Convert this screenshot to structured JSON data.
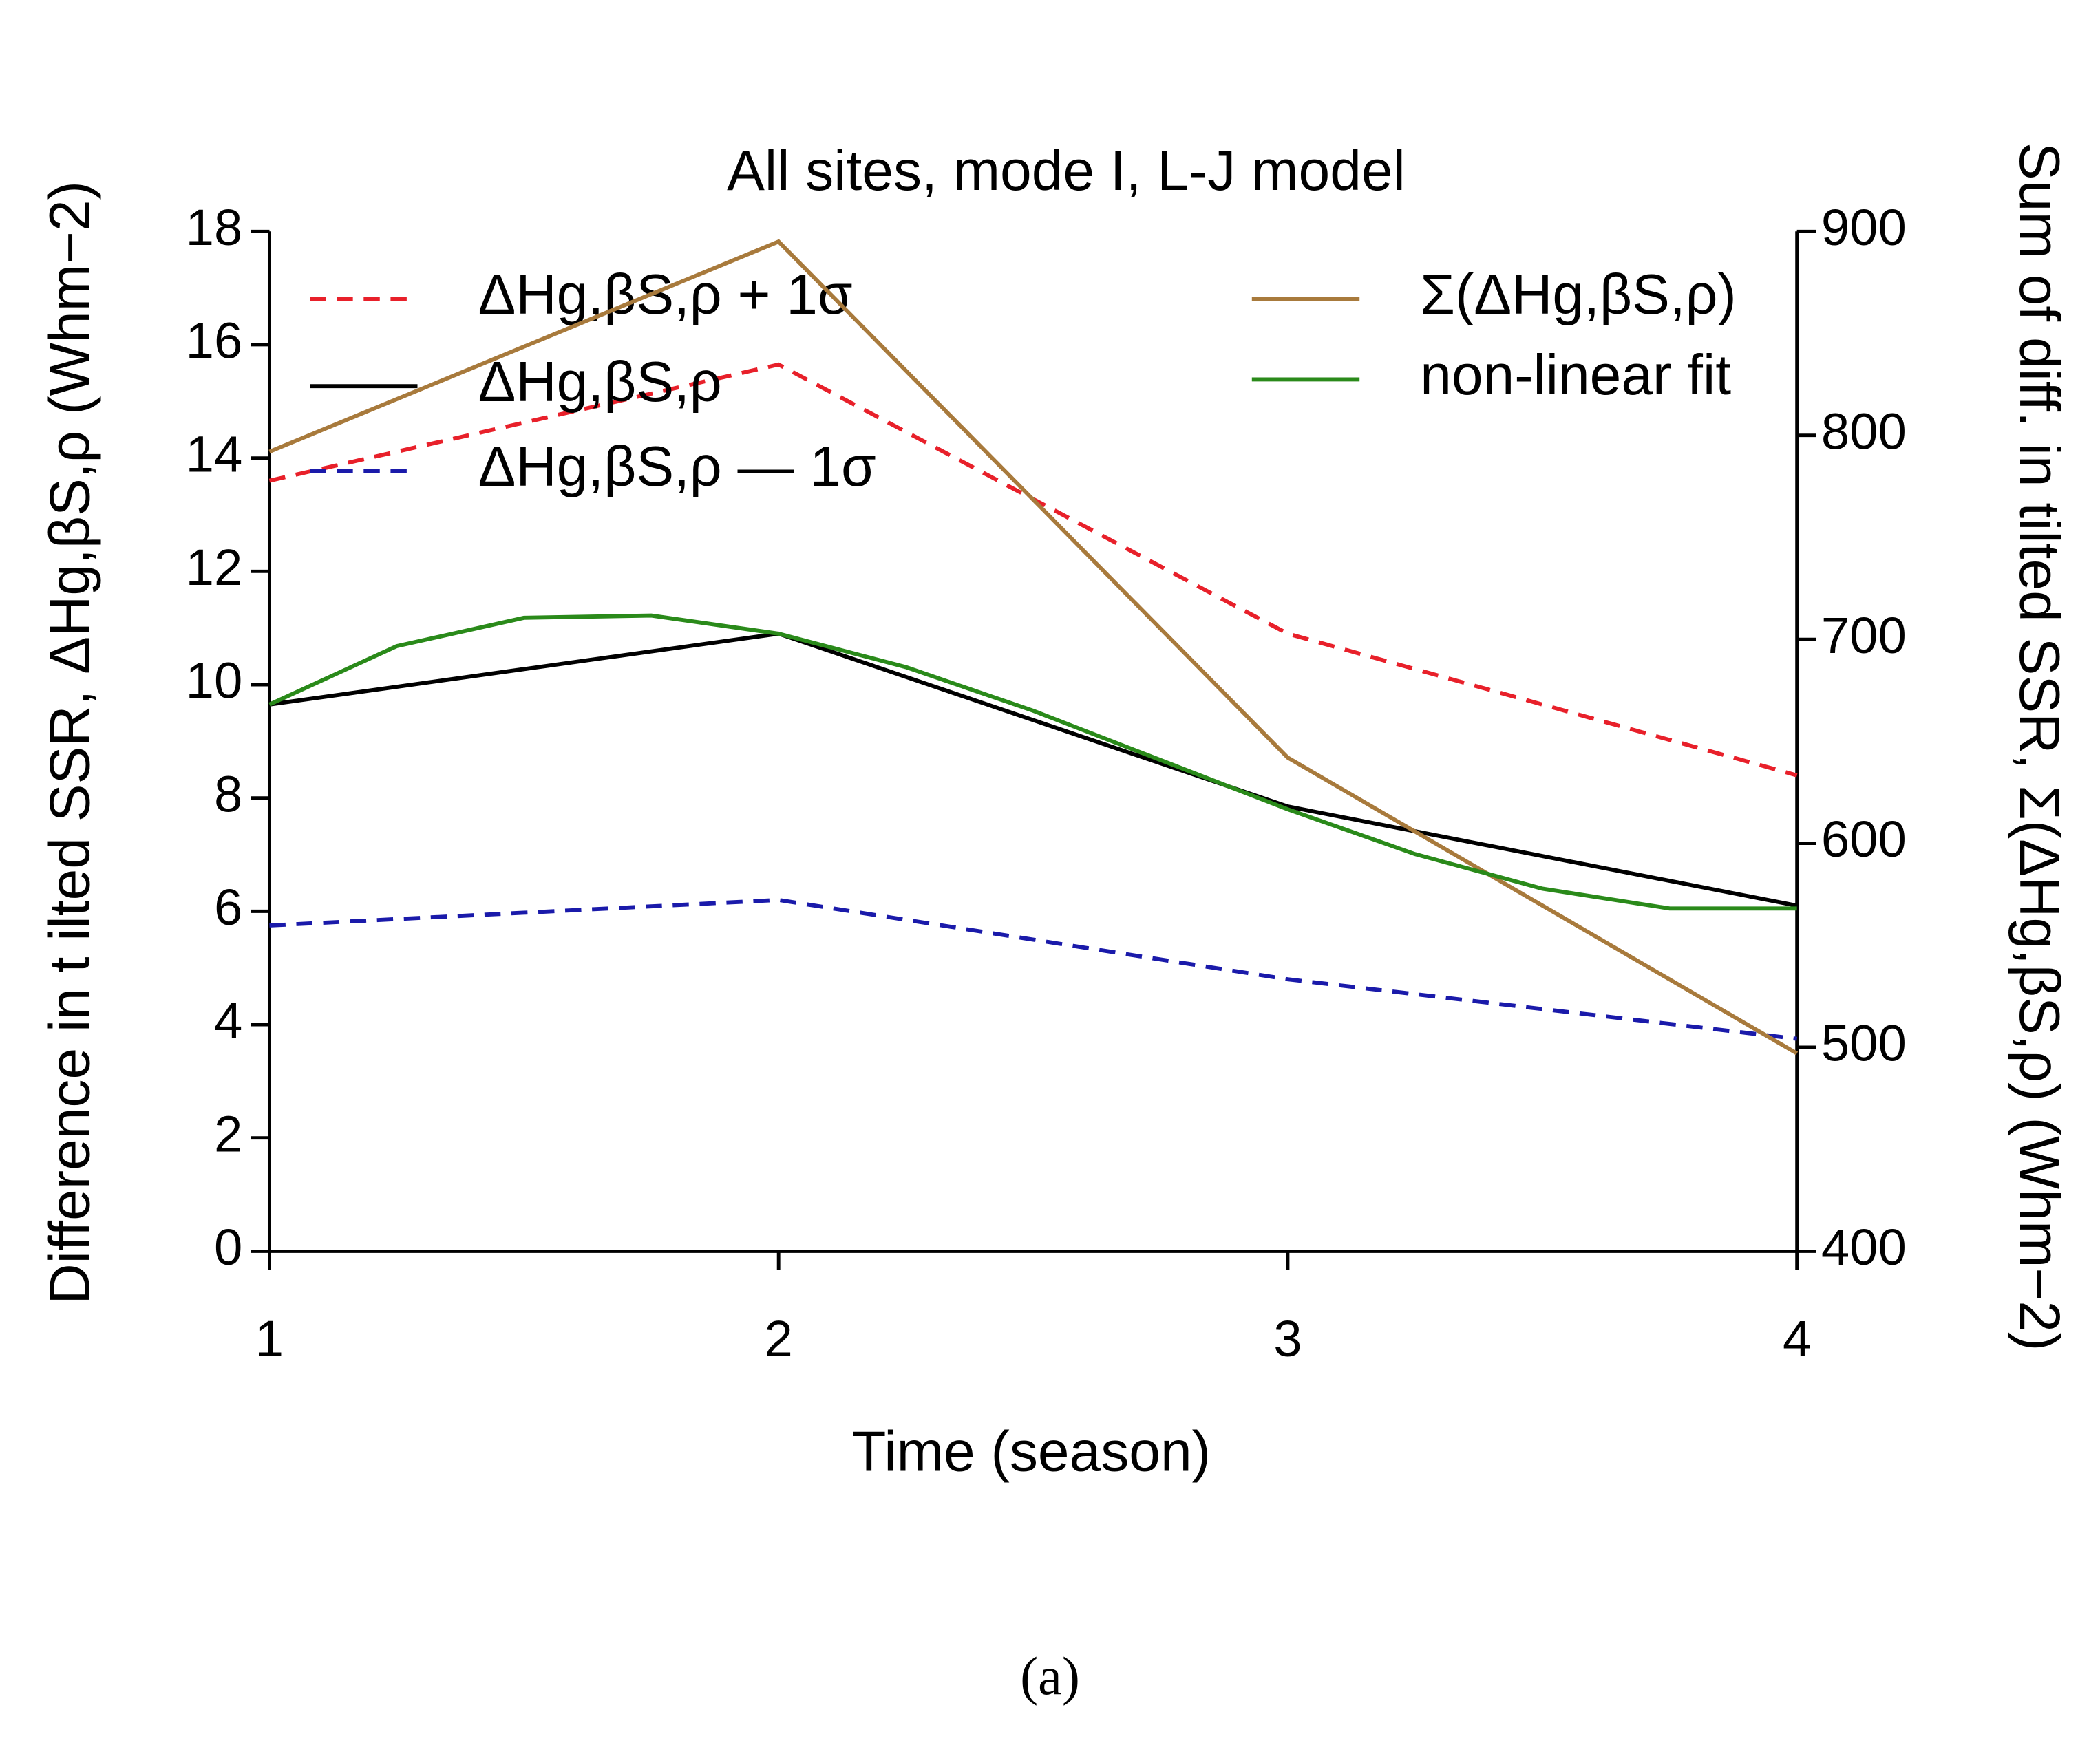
{
  "chart_data": {
    "type": "line",
    "title": "All sites, mode I, L-J model",
    "xlabel": "Time (season)",
    "ylabel": "Difference in t ilted SSR, ΔHg,βS,ρ (Whm−2)",
    "y2label": "Sum of diff. in tilted SSR, Σ(ΔHg,βS,ρ) (Whm−2)",
    "caption": "(a)",
    "x": [
      1,
      2,
      3,
      4
    ],
    "xlim": [
      1,
      4
    ],
    "xticks": [
      1,
      2,
      3,
      4
    ],
    "ylim": [
      0,
      18
    ],
    "yticks": [
      0,
      2,
      4,
      6,
      8,
      10,
      12,
      14,
      16,
      18
    ],
    "y2lim": [
      400,
      900
    ],
    "y2ticks": [
      400,
      500,
      600,
      700,
      800,
      900
    ],
    "series": [
      {
        "name": "ΔHg,βS,ρ + 1σ",
        "color": "#e8202a",
        "dashed": true,
        "values": [
          13.6,
          15.65,
          10.9,
          8.4
        ]
      },
      {
        "name": "ΔHg,βS,ρ",
        "color": "#000000",
        "dashed": false,
        "values": [
          9.65,
          10.9,
          7.85,
          6.1
        ]
      },
      {
        "name": "ΔHg,βS,ρ — 1σ",
        "color": "#1a1aaa",
        "dashed": true,
        "values": [
          5.75,
          6.2,
          4.8,
          3.75
        ]
      },
      {
        "name": "Σ(ΔHg,βS,ρ)",
        "color": "#a87a3c",
        "dashed": false,
        "axis": "y2",
        "values": [
          792,
          895,
          642,
          497
        ]
      },
      {
        "name": "non-linear fit",
        "color": "#2a8a1a",
        "dashed": false,
        "x": [
          1,
          1.25,
          1.5,
          1.75,
          2,
          2.25,
          2.5,
          2.75,
          3,
          3.25,
          3.5,
          3.75,
          4
        ],
        "values": [
          9.65,
          10.68,
          11.18,
          11.22,
          10.9,
          10.31,
          9.54,
          8.67,
          7.8,
          7.01,
          6.4,
          6.05,
          6.05
        ]
      }
    ]
  }
}
